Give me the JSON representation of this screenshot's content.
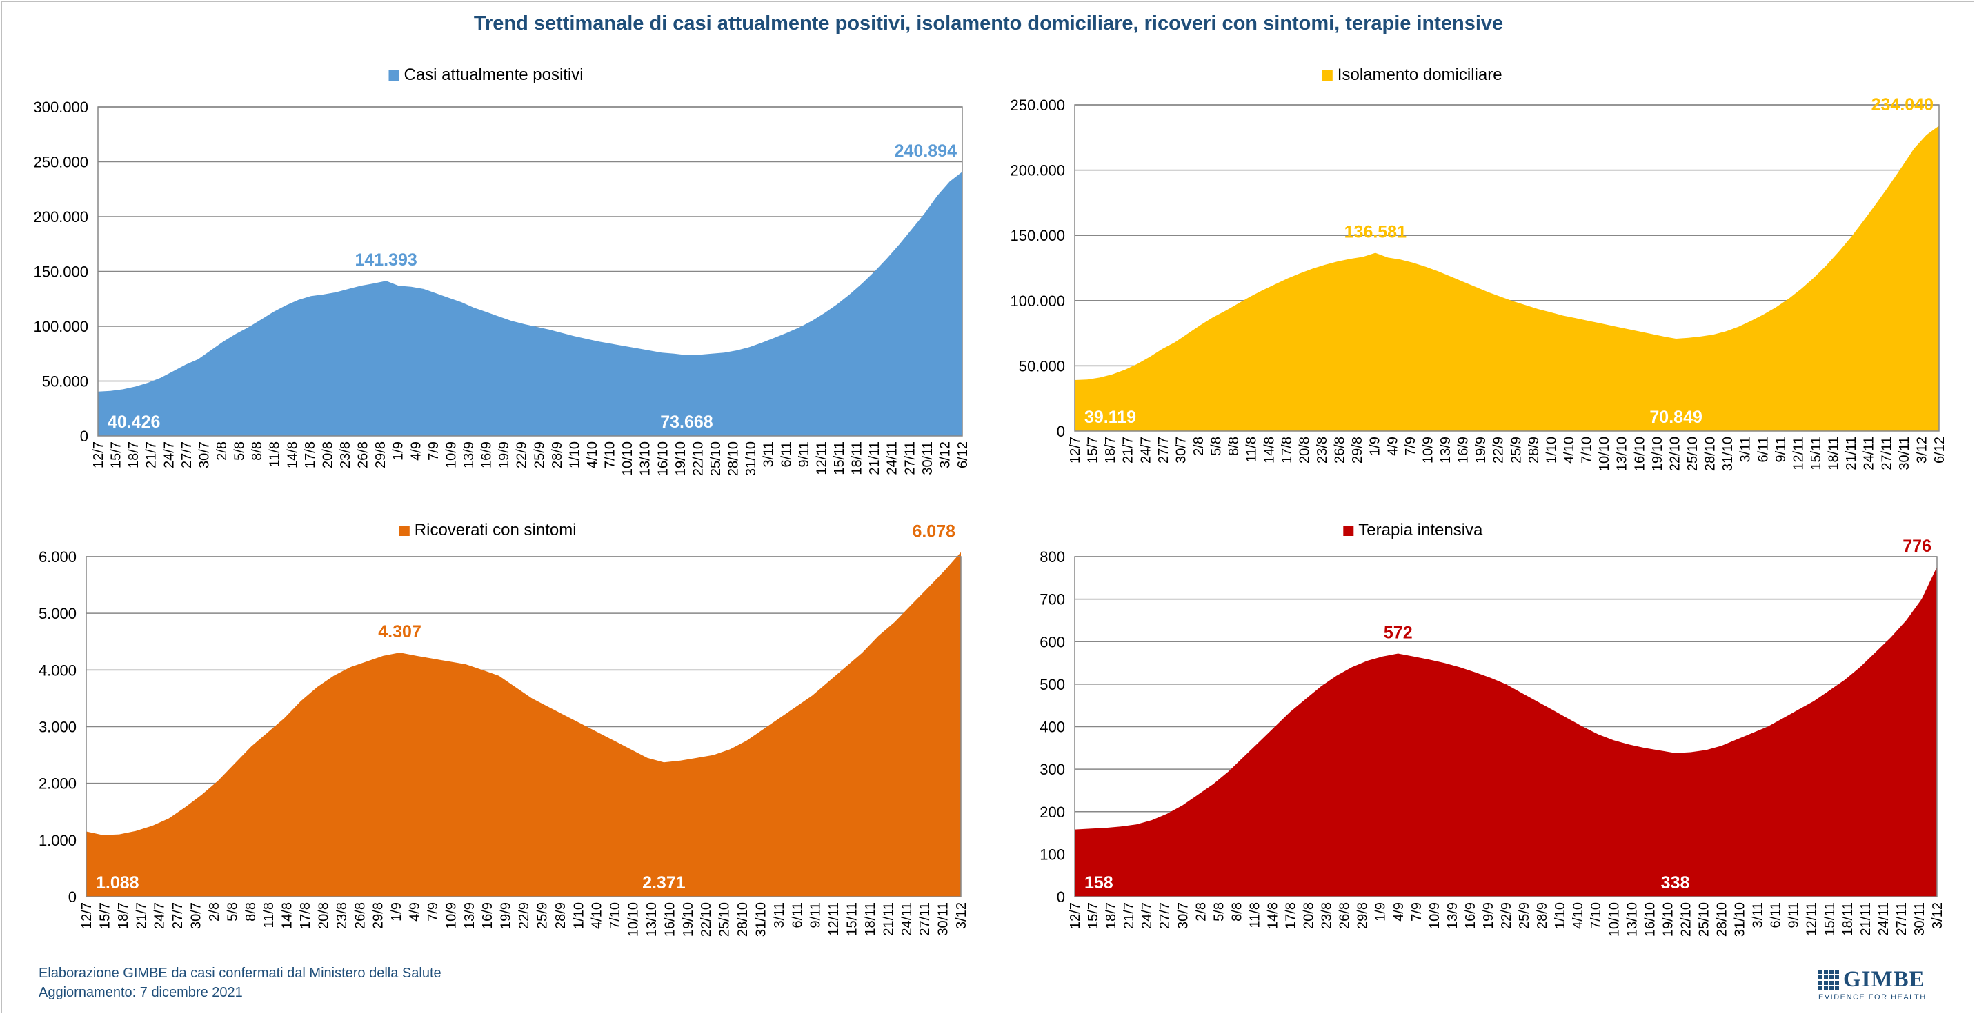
{
  "title": "Trend settimanale di casi attualmente positivi, isolamento domiciliare, ricoveri con sintomi, terapie intensive",
  "footer": {
    "line1": "Elaborazione GIMBE da casi confermati dal Ministero della Salute",
    "line2": "Aggiornamento: 7 dicembre 2021"
  },
  "logo": {
    "name": "GIMBE",
    "tagline": "EVIDENCE FOR HEALTH",
    "color": "#1f4e79"
  },
  "chart_data": [
    {
      "type": "area",
      "legend": "Casi attualmente positivi",
      "color": "#5b9bd5",
      "label_color": "#5b9bd5",
      "ylim": [
        0,
        300000
      ],
      "yticks": [
        "0",
        "50.000",
        "100.000",
        "150.000",
        "200.000",
        "250.000",
        "300.000"
      ],
      "xticks": [
        "12/7",
        "15/7",
        "18/7",
        "21/7",
        "24/7",
        "27/7",
        "30/7",
        "2/8",
        "5/8",
        "8/8",
        "11/8",
        "14/8",
        "17/8",
        "20/8",
        "23/8",
        "26/8",
        "29/8",
        "1/9",
        "4/9",
        "7/9",
        "10/9",
        "13/9",
        "16/9",
        "19/9",
        "22/9",
        "25/9",
        "28/9",
        "1/10",
        "4/10",
        "7/10",
        "10/10",
        "13/10",
        "16/10",
        "19/10",
        "22/10",
        "25/10",
        "28/10",
        "31/10",
        "3/11",
        "6/11",
        "9/11",
        "12/11",
        "15/11",
        "18/11",
        "21/11",
        "24/11",
        "27/11",
        "30/11",
        "3/12",
        "6/12"
      ],
      "values": [
        40426,
        41000,
        42500,
        45000,
        48500,
        53000,
        59000,
        65000,
        70000,
        78000,
        86000,
        93000,
        99000,
        106000,
        113000,
        119000,
        124000,
        127500,
        129000,
        131000,
        134000,
        137000,
        139000,
        141393,
        137000,
        136000,
        134000,
        130000,
        126000,
        122000,
        117000,
        113000,
        109000,
        105000,
        102000,
        99500,
        97000,
        94000,
        91000,
        88500,
        86000,
        84000,
        82000,
        80000,
        78000,
        76000,
        75000,
        73668,
        74000,
        75000,
        76000,
        78000,
        81000,
        85000,
        89500,
        94000,
        99000,
        105000,
        112000,
        120000,
        129000,
        139000,
        150000,
        162000,
        175000,
        189000,
        203000,
        219000,
        232000,
        240894
      ],
      "annotations": [
        {
          "text": "40.426",
          "index": 0,
          "pos": "inside-bottom"
        },
        {
          "text": "141.393",
          "index": 23,
          "pos": "above"
        },
        {
          "text": "73.668",
          "index": 47,
          "pos": "inside-bottom"
        },
        {
          "text": "240.894",
          "index": 69,
          "pos": "above"
        }
      ]
    },
    {
      "type": "area",
      "legend": "Isolamento domiciliare",
      "color": "#ffc000",
      "label_color": "#ffc000",
      "ylim": [
        0,
        250000
      ],
      "yticks": [
        "0",
        "50.000",
        "100.000",
        "150.000",
        "200.000",
        "250.000"
      ],
      "xticks": [
        "12/7",
        "15/7",
        "18/7",
        "21/7",
        "24/7",
        "27/7",
        "30/7",
        "2/8",
        "5/8",
        "8/8",
        "11/8",
        "14/8",
        "17/8",
        "20/8",
        "23/8",
        "26/8",
        "29/8",
        "1/9",
        "4/9",
        "7/9",
        "10/9",
        "13/9",
        "16/9",
        "19/9",
        "22/9",
        "25/9",
        "28/9",
        "1/10",
        "4/10",
        "7/10",
        "10/10",
        "13/10",
        "16/10",
        "19/10",
        "22/10",
        "25/10",
        "28/10",
        "31/10",
        "3/11",
        "6/11",
        "9/11",
        "12/11",
        "15/11",
        "18/11",
        "21/11",
        "24/11",
        "27/11",
        "30/11",
        "3/12",
        "6/12"
      ],
      "values": [
        39119,
        39500,
        41000,
        43500,
        47000,
        51500,
        57000,
        63000,
        68000,
        74500,
        81000,
        87000,
        92000,
        97500,
        103000,
        108000,
        112500,
        117000,
        121000,
        124500,
        127500,
        130000,
        132000,
        133500,
        136581,
        133000,
        131500,
        129000,
        126000,
        122500,
        118500,
        114500,
        110500,
        106500,
        103000,
        99500,
        96500,
        93500,
        91000,
        88500,
        86500,
        84500,
        82500,
        80500,
        78500,
        76500,
        74500,
        72500,
        70849,
        71500,
        72500,
        74000,
        76500,
        80000,
        84500,
        89500,
        95000,
        101500,
        109000,
        117500,
        127000,
        137500,
        149000,
        161500,
        174500,
        188000,
        202000,
        216500,
        227000,
        234040
      ],
      "annotations": [
        {
          "text": "39.119",
          "index": 0,
          "pos": "inside-bottom"
        },
        {
          "text": "136.581",
          "index": 24,
          "pos": "above"
        },
        {
          "text": "70.849",
          "index": 48,
          "pos": "inside-bottom"
        },
        {
          "text": "234.040",
          "index": 69,
          "pos": "above"
        }
      ]
    },
    {
      "type": "area",
      "legend": "Ricoverati con sintomi",
      "color": "#e46c0a",
      "label_color": "#e46c0a",
      "ylim": [
        0,
        6000
      ],
      "yticks": [
        "0",
        "1.000",
        "2.000",
        "3.000",
        "4.000",
        "5.000",
        "6.000"
      ],
      "xticks": [
        "12/7",
        "15/7",
        "18/7",
        "21/7",
        "24/7",
        "27/7",
        "30/7",
        "2/8",
        "5/8",
        "8/8",
        "11/8",
        "14/8",
        "17/8",
        "20/8",
        "23/8",
        "26/8",
        "29/8",
        "1/9",
        "4/9",
        "7/9",
        "10/9",
        "13/9",
        "16/9",
        "19/9",
        "22/9",
        "25/9",
        "28/9",
        "1/10",
        "4/10",
        "7/10",
        "10/10",
        "13/10",
        "16/10",
        "19/10",
        "22/10",
        "25/10",
        "28/10",
        "31/10",
        "3/11",
        "6/11",
        "9/11",
        "12/11",
        "15/11",
        "18/11",
        "21/11",
        "24/11",
        "27/11",
        "30/11",
        "3/12"
      ],
      "values": [
        1150,
        1088,
        1100,
        1160,
        1250,
        1380,
        1580,
        1800,
        2050,
        2350,
        2650,
        2900,
        3150,
        3450,
        3700,
        3900,
        4050,
        4150,
        4250,
        4307,
        4250,
        4200,
        4150,
        4100,
        4000,
        3900,
        3700,
        3500,
        3350,
        3200,
        3050,
        2900,
        2750,
        2600,
        2450,
        2371,
        2400,
        2450,
        2500,
        2600,
        2750,
        2950,
        3150,
        3350,
        3550,
        3800,
        4050,
        4300,
        4600,
        4850,
        5150,
        5450,
        5750,
        6078
      ],
      "annotations": [
        {
          "text": "1.088",
          "index": 1,
          "pos": "inside-bottom"
        },
        {
          "text": "4.307",
          "index": 19,
          "pos": "above"
        },
        {
          "text": "2.371",
          "index": 35,
          "pos": "inside-bottom"
        },
        {
          "text": "6.078",
          "index": 53,
          "pos": "above"
        }
      ]
    },
    {
      "type": "area",
      "legend": "Terapia intensiva",
      "color": "#c00000",
      "label_color": "#c00000",
      "ylim": [
        0,
        800
      ],
      "yticks": [
        "0",
        "100",
        "200",
        "300",
        "400",
        "500",
        "600",
        "700",
        "800"
      ],
      "xticks": [
        "12/7",
        "15/7",
        "18/7",
        "21/7",
        "24/7",
        "27/7",
        "30/7",
        "2/8",
        "5/8",
        "8/8",
        "11/8",
        "14/8",
        "17/8",
        "20/8",
        "23/8",
        "26/8",
        "29/8",
        "1/9",
        "4/9",
        "7/9",
        "10/9",
        "13/9",
        "16/9",
        "19/9",
        "22/9",
        "25/9",
        "28/9",
        "1/10",
        "4/10",
        "7/10",
        "10/10",
        "13/10",
        "16/10",
        "19/10",
        "22/10",
        "25/10",
        "28/10",
        "31/10",
        "3/11",
        "6/11",
        "9/11",
        "12/11",
        "15/11",
        "18/11",
        "21/11",
        "24/11",
        "27/11",
        "30/11",
        "3/12"
      ],
      "values": [
        158,
        160,
        162,
        165,
        170,
        180,
        195,
        215,
        240,
        265,
        295,
        330,
        365,
        400,
        435,
        465,
        495,
        520,
        540,
        555,
        565,
        572,
        565,
        558,
        550,
        540,
        528,
        515,
        500,
        480,
        460,
        440,
        420,
        400,
        382,
        368,
        358,
        350,
        344,
        338,
        340,
        345,
        355,
        370,
        385,
        400,
        420,
        440,
        460,
        485,
        510,
        540,
        575,
        610,
        650,
        700,
        776
      ],
      "annotations": [
        {
          "text": "158",
          "index": 0,
          "pos": "inside-bottom"
        },
        {
          "text": "572",
          "index": 21,
          "pos": "above"
        },
        {
          "text": "338",
          "index": 39,
          "pos": "inside-bottom"
        },
        {
          "text": "776",
          "index": 56,
          "pos": "above"
        }
      ]
    }
  ]
}
